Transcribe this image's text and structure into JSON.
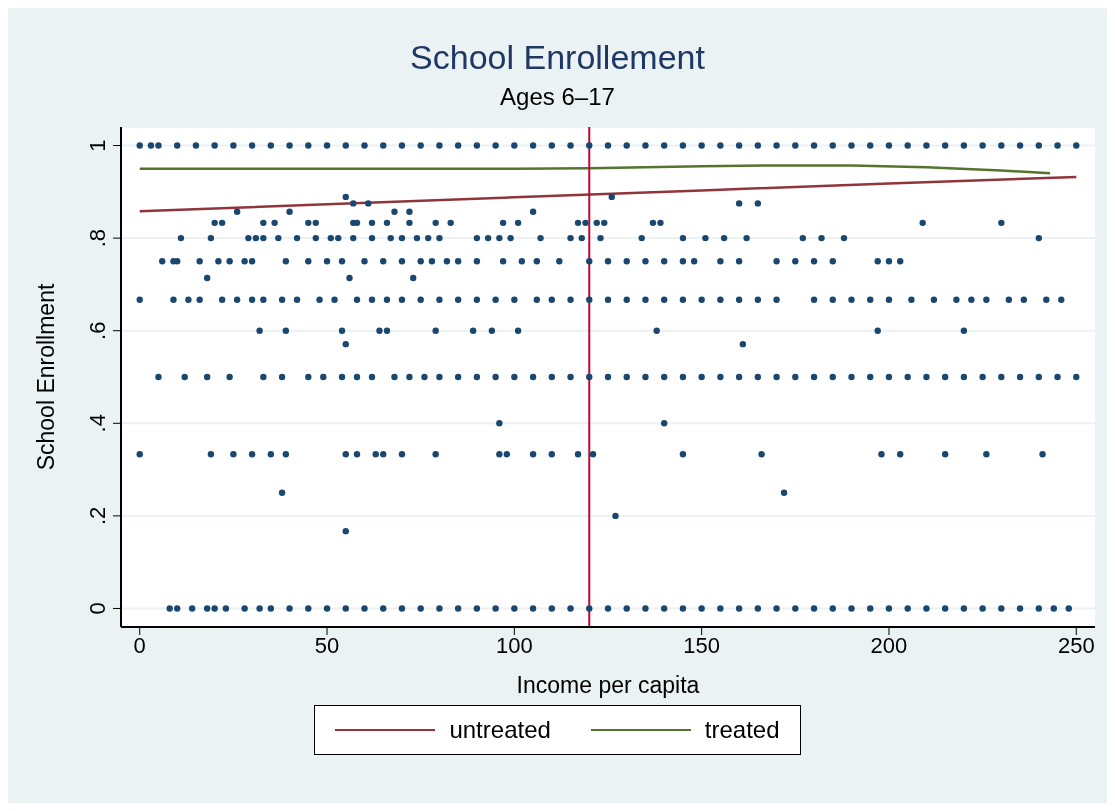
{
  "chart_data": {
    "type": "scatter",
    "title": "School Enrollement",
    "subtitle": "Ages 6–17",
    "xlabel": "Income per capita",
    "ylabel": "School Enrollment",
    "xlim": [
      -5,
      255
    ],
    "xticks": [
      0,
      50,
      100,
      150,
      200,
      250
    ],
    "ylim": [
      -0.04,
      1.04
    ],
    "yticks": [
      {
        "value": 0,
        "label": "0"
      },
      {
        "value": 0.2,
        "label": ".2"
      },
      {
        "value": 0.4,
        "label": ".4"
      },
      {
        "value": 0.6,
        "label": ".6"
      },
      {
        "value": 0.8,
        "label": ".8"
      },
      {
        "value": 1,
        "label": "1"
      }
    ],
    "grid": "y",
    "legend": "bottom",
    "marker": "circle",
    "ref_lines": [
      {
        "axis": "x",
        "value": 120,
        "color": "#c10534"
      }
    ],
    "series": [
      {
        "color": "#1a476f",
        "x": [
          0,
          3,
          5,
          10,
          15,
          20,
          25,
          30,
          35,
          40,
          45,
          50,
          55,
          60,
          65,
          70,
          75,
          80,
          85,
          90,
          95,
          100,
          105,
          110,
          115,
          120,
          125,
          130,
          135,
          140,
          145,
          150,
          155,
          160,
          165,
          170,
          175,
          180,
          185,
          190,
          195,
          200,
          205,
          210,
          215,
          220,
          225,
          230,
          235,
          240,
          245,
          250
        ],
        "values": [
          1,
          1,
          1,
          1,
          1,
          1,
          1,
          1,
          1,
          1,
          1,
          1,
          1,
          1,
          1,
          1,
          1,
          1,
          1,
          1,
          1,
          1,
          1,
          1,
          1,
          1,
          1,
          1,
          1,
          1,
          1,
          1,
          1,
          1,
          1,
          1,
          1,
          1,
          1,
          1,
          1,
          1,
          1,
          1,
          1,
          1,
          1,
          1,
          1,
          1,
          1,
          1
        ]
      },
      {
        "color": "#1a476f",
        "x": [
          55,
          126
        ],
        "values": [
          0.889,
          0.889
        ]
      },
      {
        "color": "#1a476f",
        "x": [
          57,
          61,
          160,
          165
        ],
        "values": [
          0.875,
          0.875,
          0.875,
          0.875
        ]
      },
      {
        "color": "#1a476f",
        "x": [
          26,
          40,
          68,
          72,
          105
        ],
        "values": [
          0.857,
          0.857,
          0.857,
          0.857,
          0.857
        ]
      },
      {
        "color": "#1a476f",
        "x": [
          20,
          22,
          33,
          36,
          45,
          47,
          57,
          58,
          62,
          66,
          72,
          79,
          83,
          97,
          101,
          117,
          119,
          122,
          124,
          137,
          139,
          209,
          230
        ],
        "values": [
          0.833,
          0.833,
          0.833,
          0.833,
          0.833,
          0.833,
          0.833,
          0.833,
          0.833,
          0.833,
          0.833,
          0.833,
          0.833,
          0.833,
          0.833,
          0.833,
          0.833,
          0.833,
          0.833,
          0.833,
          0.833,
          0.833,
          0.833
        ]
      },
      {
        "color": "#1a476f",
        "x": [
          11,
          19,
          29,
          31,
          33,
          37,
          42,
          47,
          51,
          53,
          57,
          62,
          67,
          70,
          74,
          77,
          80,
          90,
          93,
          96,
          99,
          107,
          115,
          118,
          123,
          134,
          145,
          151,
          156,
          162,
          177,
          182,
          188,
          240
        ],
        "values": [
          0.8,
          0.8,
          0.8,
          0.8,
          0.8,
          0.8,
          0.8,
          0.8,
          0.8,
          0.8,
          0.8,
          0.8,
          0.8,
          0.8,
          0.8,
          0.8,
          0.8,
          0.8,
          0.8,
          0.8,
          0.8,
          0.8,
          0.8,
          0.8,
          0.8,
          0.8,
          0.8,
          0.8,
          0.8,
          0.8,
          0.8,
          0.8,
          0.8,
          0.8
        ]
      },
      {
        "color": "#1a476f",
        "x": [
          6,
          9,
          10,
          16,
          21,
          24,
          28,
          30,
          39,
          45,
          50,
          54,
          60,
          65,
          70,
          75,
          78,
          82,
          85,
          90,
          97,
          102,
          106,
          112,
          120,
          125,
          130,
          135,
          140,
          145,
          148,
          155,
          160,
          170,
          175,
          180,
          185,
          197,
          200,
          203
        ],
        "values": [
          0.75,
          0.75,
          0.75,
          0.75,
          0.75,
          0.75,
          0.75,
          0.75,
          0.75,
          0.75,
          0.75,
          0.75,
          0.75,
          0.75,
          0.75,
          0.75,
          0.75,
          0.75,
          0.75,
          0.75,
          0.75,
          0.75,
          0.75,
          0.75,
          0.75,
          0.75,
          0.75,
          0.75,
          0.75,
          0.75,
          0.75,
          0.75,
          0.75,
          0.75,
          0.75,
          0.75,
          0.75,
          0.75,
          0.75,
          0.75
        ]
      },
      {
        "color": "#1a476f",
        "x": [
          18,
          56,
          73
        ],
        "values": [
          0.714,
          0.714,
          0.714
        ]
      },
      {
        "color": "#1a476f",
        "x": [
          0,
          9,
          13,
          16,
          22,
          26,
          30,
          33,
          38,
          42,
          48,
          52,
          58,
          62,
          66,
          70,
          75,
          80,
          85,
          90,
          95,
          100,
          106,
          110,
          115,
          120,
          125,
          130,
          135,
          140,
          145,
          150,
          155,
          160,
          165,
          170,
          180,
          185,
          190,
          195,
          200,
          206,
          212,
          218,
          222,
          226,
          232,
          236,
          242,
          246
        ],
        "values": [
          0.667,
          0.667,
          0.667,
          0.667,
          0.667,
          0.667,
          0.667,
          0.667,
          0.667,
          0.667,
          0.667,
          0.667,
          0.667,
          0.667,
          0.667,
          0.667,
          0.667,
          0.667,
          0.667,
          0.667,
          0.667,
          0.667,
          0.667,
          0.667,
          0.667,
          0.667,
          0.667,
          0.667,
          0.667,
          0.667,
          0.667,
          0.667,
          0.667,
          0.667,
          0.667,
          0.667,
          0.667,
          0.667,
          0.667,
          0.667,
          0.667,
          0.667,
          0.667,
          0.667,
          0.667,
          0.667,
          0.667,
          0.667,
          0.667,
          0.667
        ]
      },
      {
        "color": "#1a476f",
        "x": [
          32,
          39,
          54,
          64,
          66,
          79,
          89,
          94,
          101,
          138,
          197,
          220
        ],
        "values": [
          0.6,
          0.6,
          0.6,
          0.6,
          0.6,
          0.6,
          0.6,
          0.6,
          0.6,
          0.6,
          0.6,
          0.6
        ]
      },
      {
        "color": "#1a476f",
        "x": [
          55,
          161
        ],
        "values": [
          0.571,
          0.571
        ]
      },
      {
        "color": "#1a476f",
        "x": [
          5,
          12,
          18,
          24,
          33,
          38,
          45,
          49,
          54,
          58,
          62,
          68,
          72,
          76,
          80,
          85,
          90,
          95,
          100,
          105,
          110,
          115,
          120,
          125,
          130,
          135,
          140,
          145,
          150,
          155,
          160,
          165,
          170,
          175,
          180,
          185,
          190,
          195,
          200,
          205,
          210,
          215,
          220,
          225,
          230,
          235,
          240,
          245,
          250
        ],
        "values": [
          0.5,
          0.5,
          0.5,
          0.5,
          0.5,
          0.5,
          0.5,
          0.5,
          0.5,
          0.5,
          0.5,
          0.5,
          0.5,
          0.5,
          0.5,
          0.5,
          0.5,
          0.5,
          0.5,
          0.5,
          0.5,
          0.5,
          0.5,
          0.5,
          0.5,
          0.5,
          0.5,
          0.5,
          0.5,
          0.5,
          0.5,
          0.5,
          0.5,
          0.5,
          0.5,
          0.5,
          0.5,
          0.5,
          0.5,
          0.5,
          0.5,
          0.5,
          0.5,
          0.5,
          0.5,
          0.5,
          0.5,
          0.5,
          0.5
        ]
      },
      {
        "color": "#1a476f",
        "x": [
          96,
          140
        ],
        "values": [
          0.4,
          0.4
        ]
      },
      {
        "color": "#1a476f",
        "x": [
          0,
          19,
          25,
          30,
          35,
          39,
          55,
          58,
          63,
          65,
          70,
          79,
          96,
          98,
          105,
          110,
          117,
          121,
          145,
          166,
          198,
          203,
          215,
          226,
          241
        ],
        "values": [
          0.333,
          0.333,
          0.333,
          0.333,
          0.333,
          0.333,
          0.333,
          0.333,
          0.333,
          0.333,
          0.333,
          0.333,
          0.333,
          0.333,
          0.333,
          0.333,
          0.333,
          0.333,
          0.333,
          0.333,
          0.333,
          0.333,
          0.333,
          0.333,
          0.333
        ]
      },
      {
        "color": "#1a476f",
        "x": [
          38,
          172
        ],
        "values": [
          0.25,
          0.25
        ]
      },
      {
        "color": "#1a476f",
        "x": [
          127
        ],
        "values": [
          0.2
        ]
      },
      {
        "color": "#1a476f",
        "x": [
          55
        ],
        "values": [
          0.167
        ]
      },
      {
        "color": "#1a476f",
        "x": [
          8,
          10,
          14,
          18,
          20,
          23,
          28,
          32,
          35,
          40,
          45,
          50,
          55,
          60,
          65,
          70,
          75,
          80,
          85,
          90,
          95,
          100,
          105,
          110,
          115,
          120,
          125,
          130,
          135,
          140,
          145,
          150,
          155,
          160,
          165,
          170,
          175,
          180,
          185,
          190,
          195,
          200,
          205,
          210,
          215,
          220,
          225,
          230,
          235,
          240,
          244,
          248
        ],
        "values": [
          0,
          0,
          0,
          0,
          0,
          0,
          0,
          0,
          0,
          0,
          0,
          0,
          0,
          0,
          0,
          0,
          0,
          0,
          0,
          0,
          0,
          0,
          0,
          0,
          0,
          0,
          0,
          0,
          0,
          0,
          0,
          0,
          0,
          0,
          0,
          0,
          0,
          0,
          0,
          0,
          0,
          0,
          0,
          0,
          0,
          0,
          0,
          0,
          0,
          0,
          0,
          0
        ]
      },
      {
        "type": "line",
        "name": "untreated",
        "marker": "none",
        "color": "#90353b",
        "x": [
          0,
          50,
          100,
          150,
          200,
          250
        ],
        "values": [
          0.858,
          0.873,
          0.888,
          0.903,
          0.918,
          0.932
        ]
      },
      {
        "type": "line",
        "name": "treated",
        "marker": "none",
        "color": "#55752f",
        "x": [
          0,
          50,
          100,
          120,
          150,
          170,
          190,
          210,
          230,
          243
        ],
        "values": [
          0.95,
          0.95,
          0.95,
          0.951,
          0.955,
          0.957,
          0.957,
          0.953,
          0.946,
          0.94
        ]
      }
    ]
  }
}
